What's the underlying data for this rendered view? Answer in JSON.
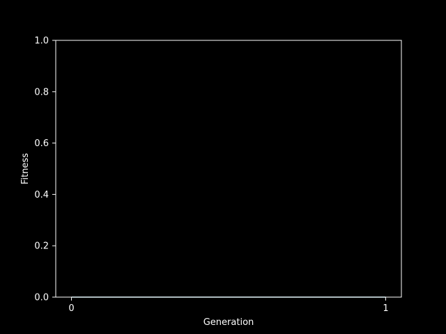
{
  "chart_data": {
    "type": "line",
    "title": "",
    "xlabel": "Generation",
    "ylabel": "Fitness",
    "xlim": [
      -0.05,
      1.05
    ],
    "ylim": [
      0.0,
      1.0
    ],
    "x_ticks": [
      "0",
      "1"
    ],
    "y_ticks": [
      "0.0",
      "0.2",
      "0.4",
      "0.6",
      "0.8",
      "1.0"
    ],
    "grid": false,
    "series": [
      {
        "x": [
          0,
          1
        ],
        "y": [
          0.0,
          0.0
        ],
        "color": "#b8f0ff"
      }
    ],
    "colors": {
      "background": "#000000",
      "axes": "#ffffff",
      "text": "#ffffff"
    }
  }
}
